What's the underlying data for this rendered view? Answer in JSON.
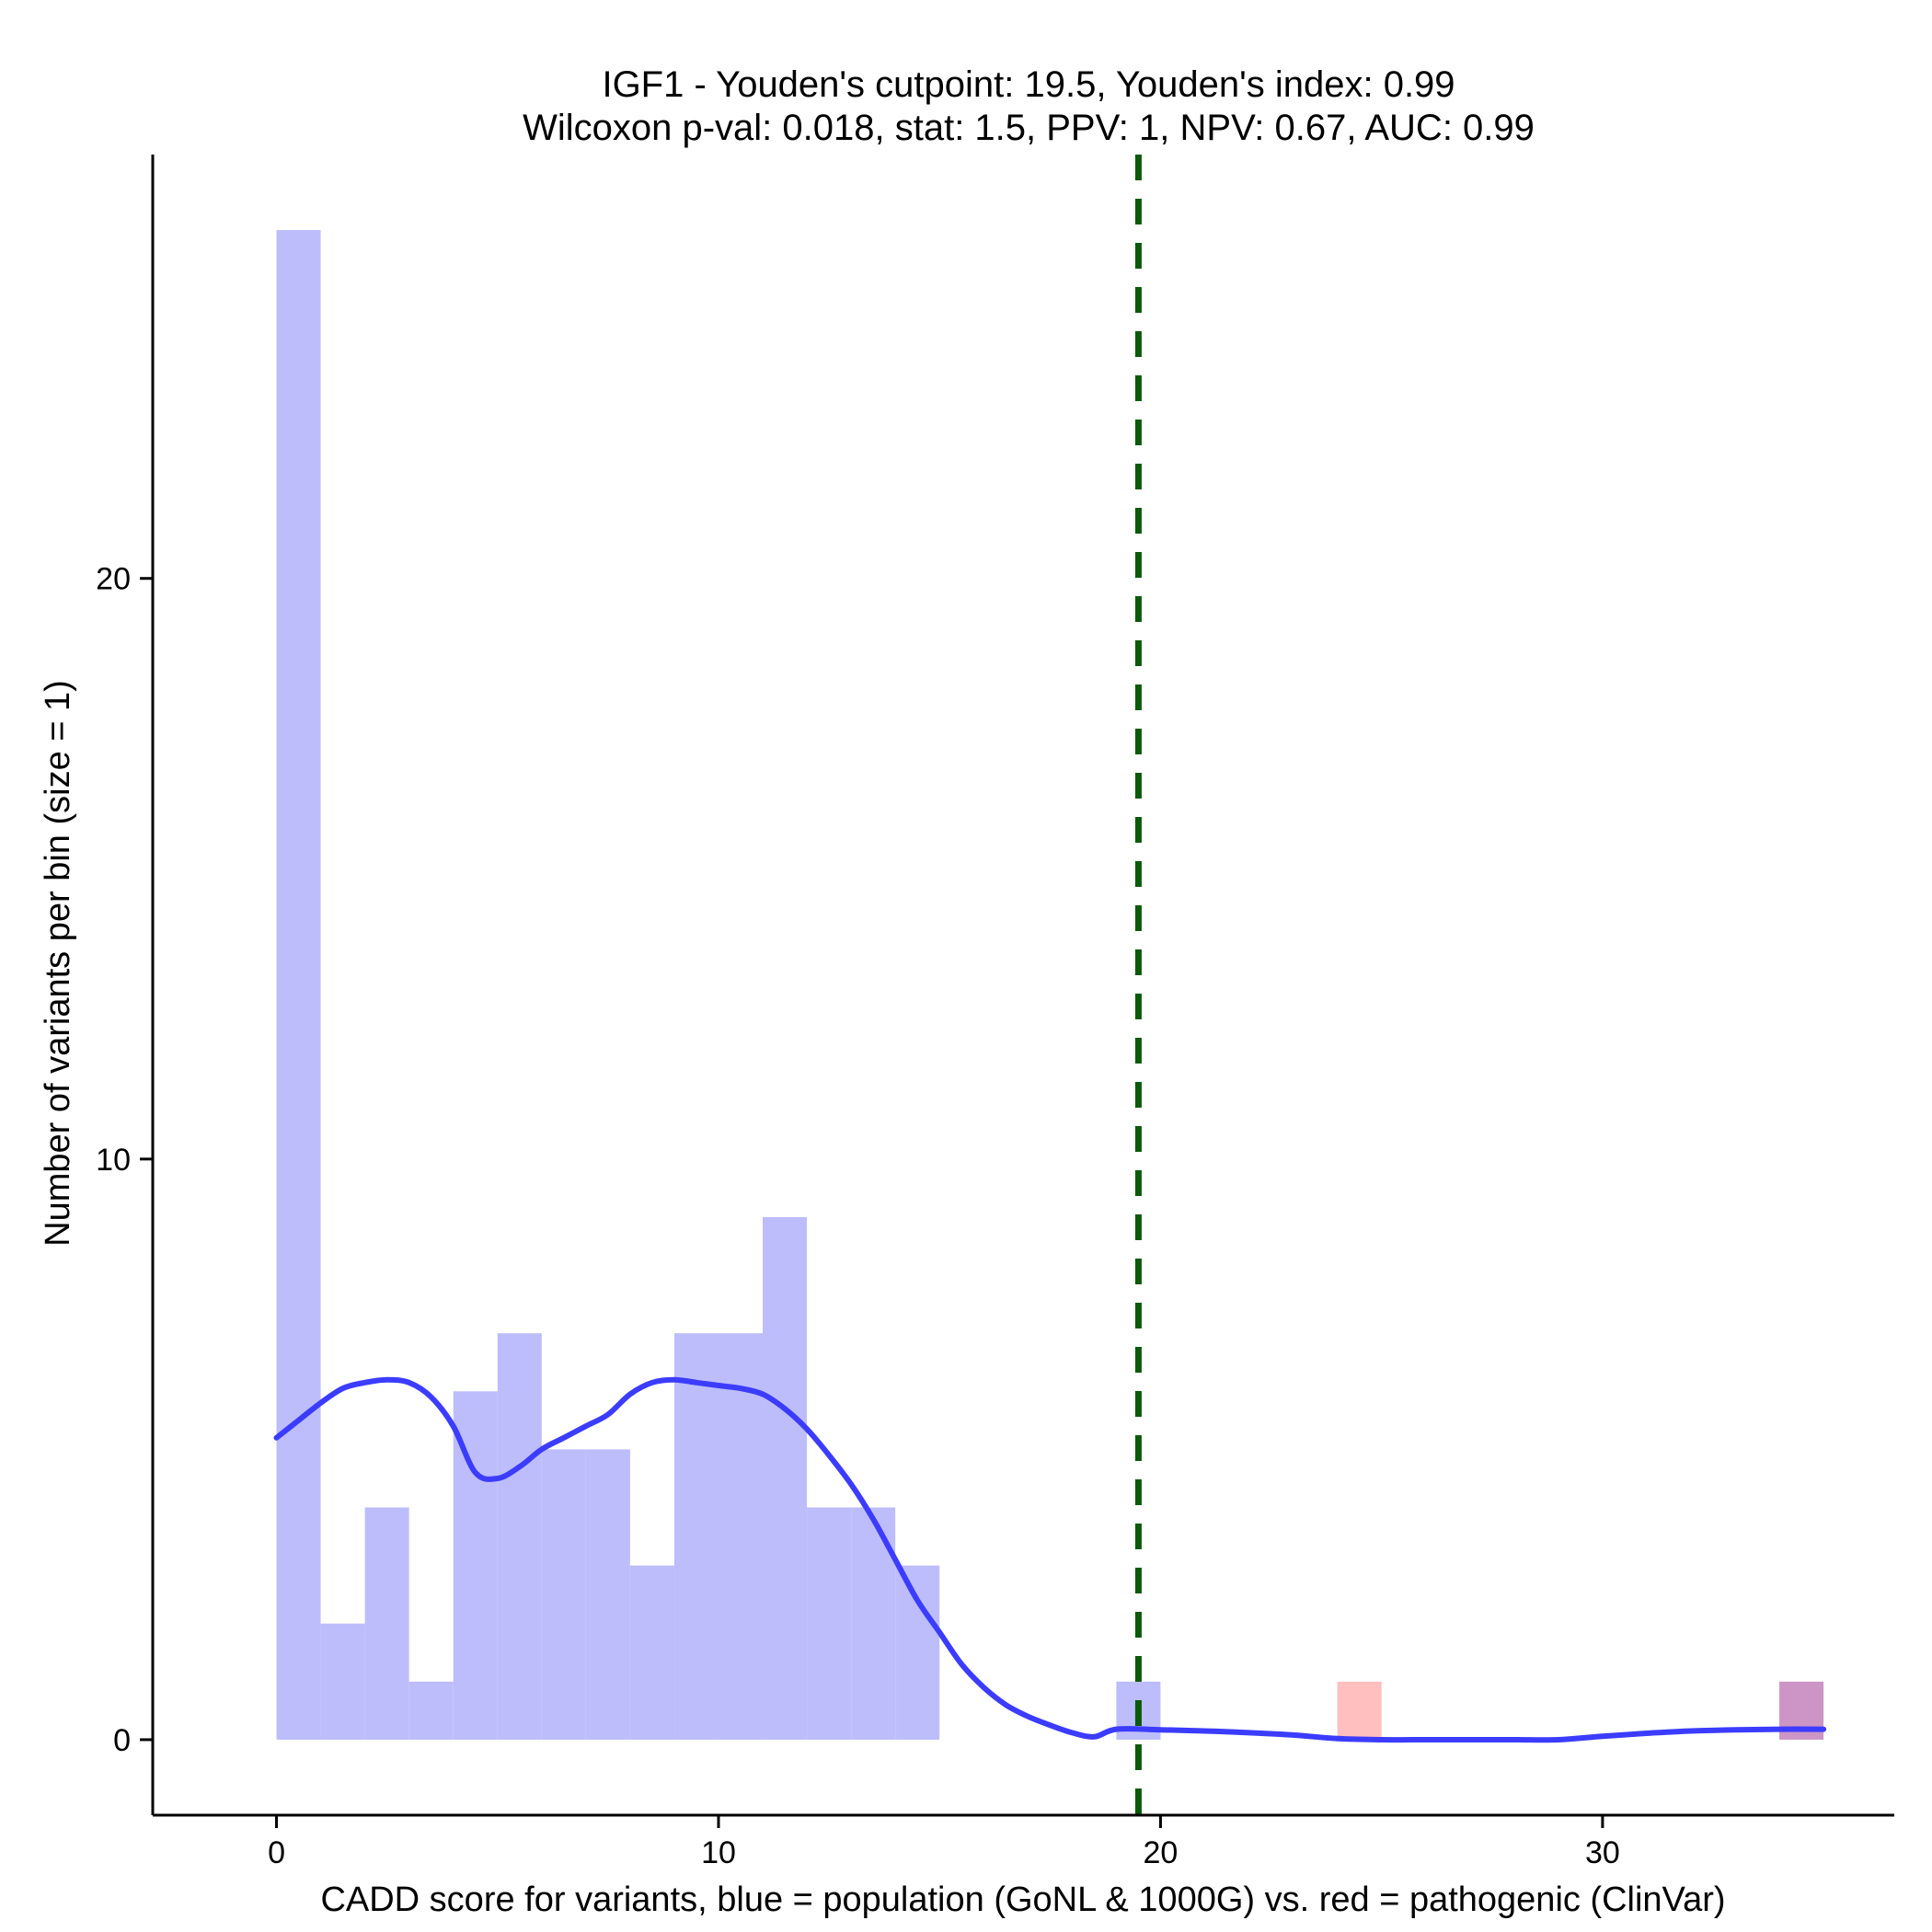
{
  "chart_data": {
    "type": "bar",
    "title": "IGF1 - Youden's cutpoint: 19.5, Youden's index: 0.99",
    "subtitle": "Wilcoxon p-val: 0.018, stat: 1.5, PPV: 1, NPV: 0.67, AUC: 0.99",
    "xlabel": "CADD score for variants, blue = population (GoNL & 1000G) vs. red = pathogenic (ClinVar)",
    "ylabel": "Number of variants per bin (size = 1)",
    "xlim": [
      -2.8,
      36.6
    ],
    "ylim": [
      -1.3,
      27.3
    ],
    "x_ticks": [
      0,
      10,
      20,
      30
    ],
    "y_ticks": [
      0,
      10,
      20
    ],
    "grid": false,
    "bin_width": 1,
    "series": [
      {
        "name": "population (GoNL & 1000G)",
        "color": "#bdbdfb",
        "bins": [
          {
            "x0": 0,
            "count": 26
          },
          {
            "x0": 1,
            "count": 2
          },
          {
            "x0": 2,
            "count": 4
          },
          {
            "x0": 3,
            "count": 1
          },
          {
            "x0": 4,
            "count": 6
          },
          {
            "x0": 5,
            "count": 7
          },
          {
            "x0": 6,
            "count": 5
          },
          {
            "x0": 7,
            "count": 5
          },
          {
            "x0": 8,
            "count": 3
          },
          {
            "x0": 9,
            "count": 7
          },
          {
            "x0": 10,
            "count": 7
          },
          {
            "x0": 11,
            "count": 9
          },
          {
            "x0": 12,
            "count": 4
          },
          {
            "x0": 13,
            "count": 4
          },
          {
            "x0": 14,
            "count": 3
          },
          {
            "x0": 19,
            "count": 1
          },
          {
            "x0": 34,
            "count": 1
          }
        ]
      },
      {
        "name": "pathogenic (ClinVar)",
        "color": "#ffbfbf",
        "bins": [
          {
            "x0": 24,
            "count": 1
          },
          {
            "x0": 34,
            "count": 1
          }
        ]
      }
    ],
    "overlap_color": "#cc95c5",
    "density_curve": {
      "color": "#3c3cff",
      "points": [
        [
          0,
          5.2
        ],
        [
          0.5,
          5.5
        ],
        [
          1,
          5.8
        ],
        [
          1.5,
          6.05
        ],
        [
          2,
          6.15
        ],
        [
          2.5,
          6.2
        ],
        [
          3,
          6.15
        ],
        [
          3.5,
          5.9
        ],
        [
          4,
          5.4
        ],
        [
          4.5,
          4.6
        ],
        [
          5,
          4.5
        ],
        [
          5.5,
          4.7
        ],
        [
          6,
          5.0
        ],
        [
          6.5,
          5.2
        ],
        [
          7,
          5.4
        ],
        [
          7.5,
          5.6
        ],
        [
          8,
          5.95
        ],
        [
          8.5,
          6.15
        ],
        [
          9,
          6.2
        ],
        [
          9.5,
          6.15
        ],
        [
          10,
          6.1
        ],
        [
          10.5,
          6.05
        ],
        [
          11,
          5.95
        ],
        [
          11.5,
          5.7
        ],
        [
          12,
          5.35
        ],
        [
          12.5,
          4.9
        ],
        [
          13,
          4.4
        ],
        [
          13.5,
          3.8
        ],
        [
          14,
          3.1
        ],
        [
          14.5,
          2.4
        ],
        [
          15,
          1.85
        ],
        [
          15.5,
          1.3
        ],
        [
          16,
          0.9
        ],
        [
          16.5,
          0.6
        ],
        [
          17,
          0.4
        ],
        [
          17.5,
          0.25
        ],
        [
          18,
          0.12
        ],
        [
          18.5,
          0.05
        ],
        [
          19,
          0.18
        ],
        [
          20,
          0.17
        ],
        [
          21,
          0.15
        ],
        [
          22,
          0.12
        ],
        [
          23,
          0.08
        ],
        [
          24,
          0.02
        ],
        [
          25,
          0.0
        ],
        [
          26,
          0.0
        ],
        [
          27,
          0.0
        ],
        [
          28,
          0.0
        ],
        [
          29,
          0.0
        ],
        [
          30,
          0.06
        ],
        [
          31,
          0.11
        ],
        [
          32,
          0.15
        ],
        [
          33,
          0.17
        ],
        [
          34,
          0.18
        ],
        [
          35,
          0.18
        ]
      ]
    },
    "cutpoint": {
      "x": 19.5,
      "color": "#0a5a0a",
      "style": "dashed"
    }
  }
}
